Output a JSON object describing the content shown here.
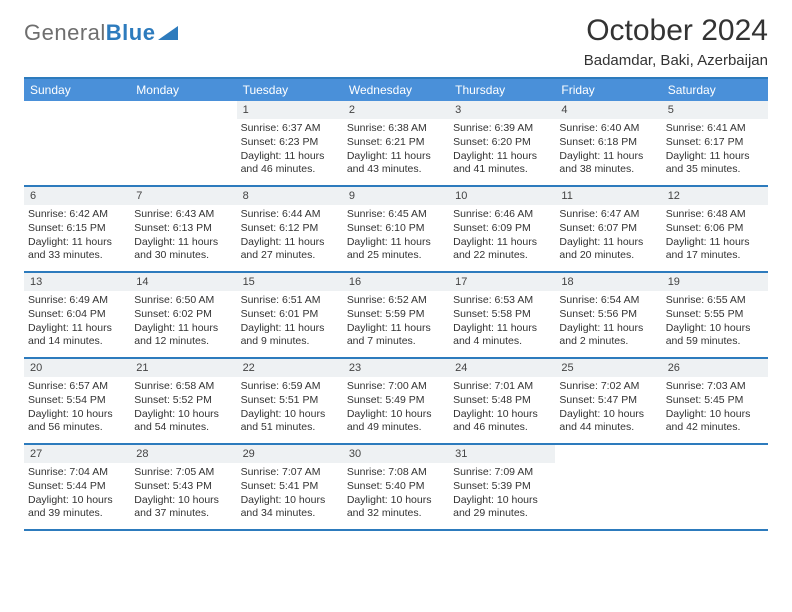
{
  "logo": {
    "text1": "General",
    "text2": "Blue"
  },
  "title": "October 2024",
  "subtitle": "Badamdar, Baki, Azerbaijan",
  "colors": {
    "accent": "#2d7bbd",
    "header_bg": "#4a90d9",
    "num_bg": "#eef1f3",
    "text": "#333333",
    "logo_gray": "#6e6e6e"
  },
  "day_names": [
    "Sunday",
    "Monday",
    "Tuesday",
    "Wednesday",
    "Thursday",
    "Friday",
    "Saturday"
  ],
  "weeks": [
    [
      {
        "n": "",
        "sr": "",
        "ss": "",
        "dl": ""
      },
      {
        "n": "",
        "sr": "",
        "ss": "",
        "dl": ""
      },
      {
        "n": "1",
        "sr": "6:37 AM",
        "ss": "6:23 PM",
        "dl": "11 hours and 46 minutes."
      },
      {
        "n": "2",
        "sr": "6:38 AM",
        "ss": "6:21 PM",
        "dl": "11 hours and 43 minutes."
      },
      {
        "n": "3",
        "sr": "6:39 AM",
        "ss": "6:20 PM",
        "dl": "11 hours and 41 minutes."
      },
      {
        "n": "4",
        "sr": "6:40 AM",
        "ss": "6:18 PM",
        "dl": "11 hours and 38 minutes."
      },
      {
        "n": "5",
        "sr": "6:41 AM",
        "ss": "6:17 PM",
        "dl": "11 hours and 35 minutes."
      }
    ],
    [
      {
        "n": "6",
        "sr": "6:42 AM",
        "ss": "6:15 PM",
        "dl": "11 hours and 33 minutes."
      },
      {
        "n": "7",
        "sr": "6:43 AM",
        "ss": "6:13 PM",
        "dl": "11 hours and 30 minutes."
      },
      {
        "n": "8",
        "sr": "6:44 AM",
        "ss": "6:12 PM",
        "dl": "11 hours and 27 minutes."
      },
      {
        "n": "9",
        "sr": "6:45 AM",
        "ss": "6:10 PM",
        "dl": "11 hours and 25 minutes."
      },
      {
        "n": "10",
        "sr": "6:46 AM",
        "ss": "6:09 PM",
        "dl": "11 hours and 22 minutes."
      },
      {
        "n": "11",
        "sr": "6:47 AM",
        "ss": "6:07 PM",
        "dl": "11 hours and 20 minutes."
      },
      {
        "n": "12",
        "sr": "6:48 AM",
        "ss": "6:06 PM",
        "dl": "11 hours and 17 minutes."
      }
    ],
    [
      {
        "n": "13",
        "sr": "6:49 AM",
        "ss": "6:04 PM",
        "dl": "11 hours and 14 minutes."
      },
      {
        "n": "14",
        "sr": "6:50 AM",
        "ss": "6:02 PM",
        "dl": "11 hours and 12 minutes."
      },
      {
        "n": "15",
        "sr": "6:51 AM",
        "ss": "6:01 PM",
        "dl": "11 hours and 9 minutes."
      },
      {
        "n": "16",
        "sr": "6:52 AM",
        "ss": "5:59 PM",
        "dl": "11 hours and 7 minutes."
      },
      {
        "n": "17",
        "sr": "6:53 AM",
        "ss": "5:58 PM",
        "dl": "11 hours and 4 minutes."
      },
      {
        "n": "18",
        "sr": "6:54 AM",
        "ss": "5:56 PM",
        "dl": "11 hours and 2 minutes."
      },
      {
        "n": "19",
        "sr": "6:55 AM",
        "ss": "5:55 PM",
        "dl": "10 hours and 59 minutes."
      }
    ],
    [
      {
        "n": "20",
        "sr": "6:57 AM",
        "ss": "5:54 PM",
        "dl": "10 hours and 56 minutes."
      },
      {
        "n": "21",
        "sr": "6:58 AM",
        "ss": "5:52 PM",
        "dl": "10 hours and 54 minutes."
      },
      {
        "n": "22",
        "sr": "6:59 AM",
        "ss": "5:51 PM",
        "dl": "10 hours and 51 minutes."
      },
      {
        "n": "23",
        "sr": "7:00 AM",
        "ss": "5:49 PM",
        "dl": "10 hours and 49 minutes."
      },
      {
        "n": "24",
        "sr": "7:01 AM",
        "ss": "5:48 PM",
        "dl": "10 hours and 46 minutes."
      },
      {
        "n": "25",
        "sr": "7:02 AM",
        "ss": "5:47 PM",
        "dl": "10 hours and 44 minutes."
      },
      {
        "n": "26",
        "sr": "7:03 AM",
        "ss": "5:45 PM",
        "dl": "10 hours and 42 minutes."
      }
    ],
    [
      {
        "n": "27",
        "sr": "7:04 AM",
        "ss": "5:44 PM",
        "dl": "10 hours and 39 minutes."
      },
      {
        "n": "28",
        "sr": "7:05 AM",
        "ss": "5:43 PM",
        "dl": "10 hours and 37 minutes."
      },
      {
        "n": "29",
        "sr": "7:07 AM",
        "ss": "5:41 PM",
        "dl": "10 hours and 34 minutes."
      },
      {
        "n": "30",
        "sr": "7:08 AM",
        "ss": "5:40 PM",
        "dl": "10 hours and 32 minutes."
      },
      {
        "n": "31",
        "sr": "7:09 AM",
        "ss": "5:39 PM",
        "dl": "10 hours and 29 minutes."
      },
      {
        "n": "",
        "sr": "",
        "ss": "",
        "dl": ""
      },
      {
        "n": "",
        "sr": "",
        "ss": "",
        "dl": ""
      }
    ]
  ],
  "labels": {
    "sunrise": "Sunrise: ",
    "sunset": "Sunset: ",
    "daylight": "Daylight: "
  }
}
